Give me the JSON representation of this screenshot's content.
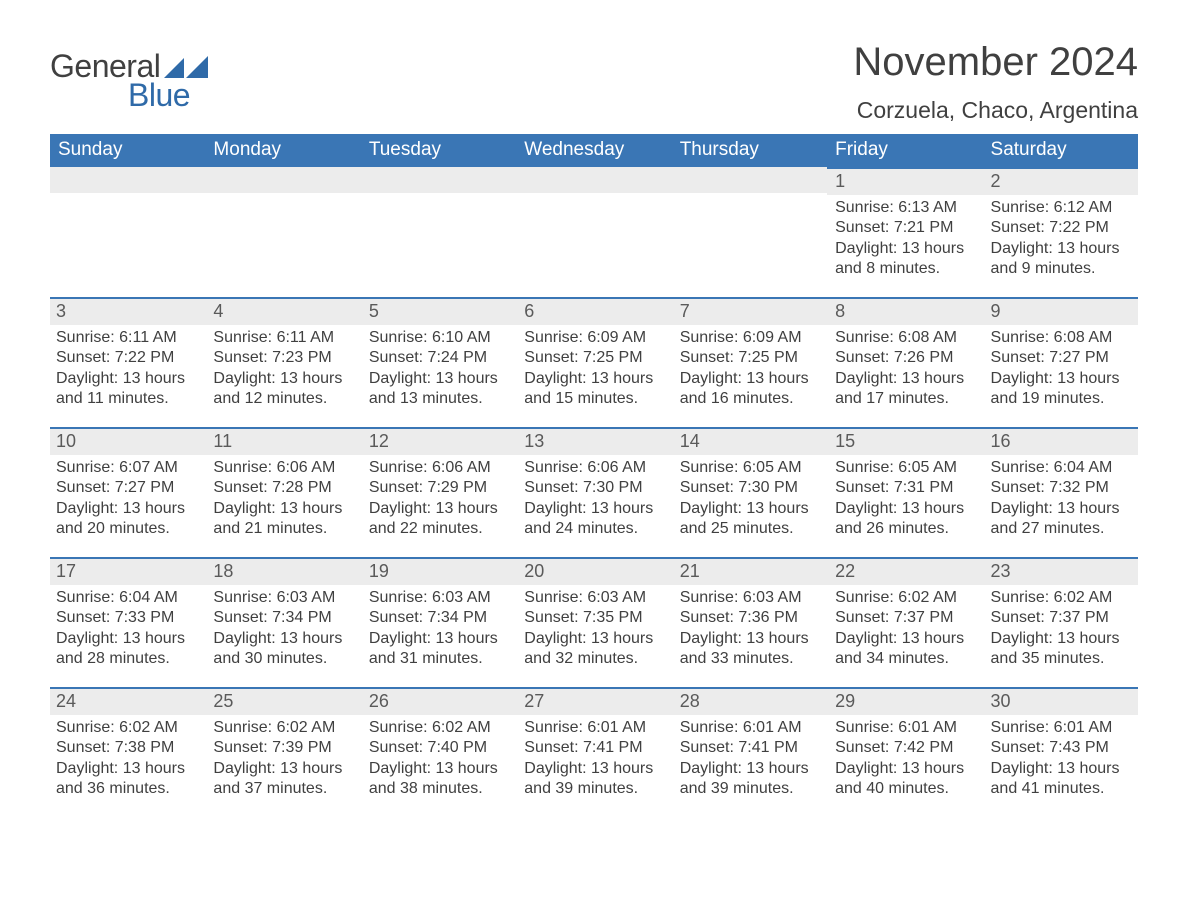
{
  "brand": {
    "part1": "General",
    "part2": "Blue",
    "text_color": "#404040",
    "accent_color": "#2f6aa8"
  },
  "title": "November 2024",
  "location": "Corzuela, Chaco, Argentina",
  "colors": {
    "header_bg": "#3a76b5",
    "header_text": "#ffffff",
    "daynum_bg": "#ececec",
    "daynum_border": "#3a76b5",
    "body_text": "#404040",
    "page_bg": "#ffffff"
  },
  "typography": {
    "title_fontsize": 40,
    "location_fontsize": 23,
    "header_fontsize": 19,
    "daynum_fontsize": 18,
    "body_fontsize": 16
  },
  "day_headers": [
    "Sunday",
    "Monday",
    "Tuesday",
    "Wednesday",
    "Thursday",
    "Friday",
    "Saturday"
  ],
  "weeks": [
    [
      null,
      null,
      null,
      null,
      null,
      {
        "n": "1",
        "sr": "6:13 AM",
        "ss": "7:21 PM",
        "dl": "13 hours and 8 minutes."
      },
      {
        "n": "2",
        "sr": "6:12 AM",
        "ss": "7:22 PM",
        "dl": "13 hours and 9 minutes."
      }
    ],
    [
      {
        "n": "3",
        "sr": "6:11 AM",
        "ss": "7:22 PM",
        "dl": "13 hours and 11 minutes."
      },
      {
        "n": "4",
        "sr": "6:11 AM",
        "ss": "7:23 PM",
        "dl": "13 hours and 12 minutes."
      },
      {
        "n": "5",
        "sr": "6:10 AM",
        "ss": "7:24 PM",
        "dl": "13 hours and 13 minutes."
      },
      {
        "n": "6",
        "sr": "6:09 AM",
        "ss": "7:25 PM",
        "dl": "13 hours and 15 minutes."
      },
      {
        "n": "7",
        "sr": "6:09 AM",
        "ss": "7:25 PM",
        "dl": "13 hours and 16 minutes."
      },
      {
        "n": "8",
        "sr": "6:08 AM",
        "ss": "7:26 PM",
        "dl": "13 hours and 17 minutes."
      },
      {
        "n": "9",
        "sr": "6:08 AM",
        "ss": "7:27 PM",
        "dl": "13 hours and 19 minutes."
      }
    ],
    [
      {
        "n": "10",
        "sr": "6:07 AM",
        "ss": "7:27 PM",
        "dl": "13 hours and 20 minutes."
      },
      {
        "n": "11",
        "sr": "6:06 AM",
        "ss": "7:28 PM",
        "dl": "13 hours and 21 minutes."
      },
      {
        "n": "12",
        "sr": "6:06 AM",
        "ss": "7:29 PM",
        "dl": "13 hours and 22 minutes."
      },
      {
        "n": "13",
        "sr": "6:06 AM",
        "ss": "7:30 PM",
        "dl": "13 hours and 24 minutes."
      },
      {
        "n": "14",
        "sr": "6:05 AM",
        "ss": "7:30 PM",
        "dl": "13 hours and 25 minutes."
      },
      {
        "n": "15",
        "sr": "6:05 AM",
        "ss": "7:31 PM",
        "dl": "13 hours and 26 minutes."
      },
      {
        "n": "16",
        "sr": "6:04 AM",
        "ss": "7:32 PM",
        "dl": "13 hours and 27 minutes."
      }
    ],
    [
      {
        "n": "17",
        "sr": "6:04 AM",
        "ss": "7:33 PM",
        "dl": "13 hours and 28 minutes."
      },
      {
        "n": "18",
        "sr": "6:03 AM",
        "ss": "7:34 PM",
        "dl": "13 hours and 30 minutes."
      },
      {
        "n": "19",
        "sr": "6:03 AM",
        "ss": "7:34 PM",
        "dl": "13 hours and 31 minutes."
      },
      {
        "n": "20",
        "sr": "6:03 AM",
        "ss": "7:35 PM",
        "dl": "13 hours and 32 minutes."
      },
      {
        "n": "21",
        "sr": "6:03 AM",
        "ss": "7:36 PM",
        "dl": "13 hours and 33 minutes."
      },
      {
        "n": "22",
        "sr": "6:02 AM",
        "ss": "7:37 PM",
        "dl": "13 hours and 34 minutes."
      },
      {
        "n": "23",
        "sr": "6:02 AM",
        "ss": "7:37 PM",
        "dl": "13 hours and 35 minutes."
      }
    ],
    [
      {
        "n": "24",
        "sr": "6:02 AM",
        "ss": "7:38 PM",
        "dl": "13 hours and 36 minutes."
      },
      {
        "n": "25",
        "sr": "6:02 AM",
        "ss": "7:39 PM",
        "dl": "13 hours and 37 minutes."
      },
      {
        "n": "26",
        "sr": "6:02 AM",
        "ss": "7:40 PM",
        "dl": "13 hours and 38 minutes."
      },
      {
        "n": "27",
        "sr": "6:01 AM",
        "ss": "7:41 PM",
        "dl": "13 hours and 39 minutes."
      },
      {
        "n": "28",
        "sr": "6:01 AM",
        "ss": "7:41 PM",
        "dl": "13 hours and 39 minutes."
      },
      {
        "n": "29",
        "sr": "6:01 AM",
        "ss": "7:42 PM",
        "dl": "13 hours and 40 minutes."
      },
      {
        "n": "30",
        "sr": "6:01 AM",
        "ss": "7:43 PM",
        "dl": "13 hours and 41 minutes."
      }
    ]
  ],
  "labels": {
    "sunrise": "Sunrise: ",
    "sunset": "Sunset: ",
    "daylight": "Daylight: "
  }
}
